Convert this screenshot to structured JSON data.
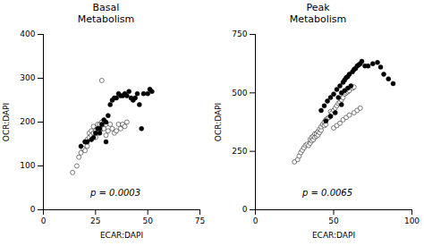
{
  "chart_data": [
    {
      "type": "scatter",
      "title": "Basal\nMetabolism",
      "xlabel": "ECAR:DAPI",
      "ylabel": "OCR:DAPI",
      "xlim": [
        0,
        75
      ],
      "ylim": [
        0,
        400
      ],
      "xticks": [
        0,
        25,
        50,
        75
      ],
      "yticks": [
        0,
        100,
        200,
        300,
        400
      ],
      "annotation": "p = 0.0003",
      "series": [
        {
          "color": "white",
          "marker": "o",
          "x": [
            14,
            16,
            17,
            18,
            19,
            20,
            20,
            21,
            21,
            22,
            22,
            23,
            23,
            24,
            24,
            25,
            25,
            26,
            26,
            27,
            27,
            28,
            28,
            29,
            30,
            30,
            31,
            32,
            33,
            34,
            35,
            36,
            37,
            38,
            39,
            40,
            28
          ],
          "values": [
            85,
            100,
            120,
            130,
            140,
            135,
            155,
            145,
            160,
            165,
            175,
            170,
            180,
            175,
            190,
            165,
            180,
            175,
            195,
            180,
            195,
            185,
            200,
            185,
            170,
            195,
            180,
            195,
            185,
            175,
            180,
            195,
            185,
            195,
            190,
            200,
            295
          ]
        },
        {
          "color": "black",
          "marker": "o",
          "x": [
            18,
            20,
            21,
            23,
            24,
            25,
            26,
            27,
            28,
            29,
            30,
            31,
            32,
            33,
            34,
            35,
            36,
            37,
            38,
            39,
            40,
            41,
            42,
            43,
            44,
            45,
            46,
            47,
            48,
            50,
            51,
            52,
            27,
            30
          ],
          "values": [
            145,
            155,
            155,
            160,
            165,
            175,
            185,
            185,
            195,
            205,
            200,
            215,
            240,
            250,
            255,
            255,
            265,
            260,
            260,
            265,
            260,
            270,
            255,
            250,
            255,
            265,
            240,
            185,
            265,
            265,
            275,
            270,
            175,
            155
          ]
        }
      ]
    },
    {
      "type": "scatter",
      "title": "Peak\nMetabolism",
      "xlabel": "ECAR:DAPI",
      "ylabel": "OCR:DAPI",
      "xlim": [
        0,
        100
      ],
      "ylim": [
        0,
        750
      ],
      "xticks": [
        0,
        50,
        100
      ],
      "yticks": [
        0,
        250,
        500,
        750
      ],
      "annotation": "p = 0.0065",
      "series": [
        {
          "color": "white",
          "marker": "o",
          "x": [
            25,
            27,
            28,
            29,
            30,
            31,
            32,
            33,
            34,
            35,
            35,
            36,
            36,
            37,
            37,
            38,
            38,
            39,
            39,
            40,
            40,
            41,
            41,
            42,
            42,
            43,
            44,
            44,
            45,
            45,
            46,
            47,
            48,
            48,
            49,
            50,
            51,
            52,
            53,
            54,
            55,
            56,
            57,
            58,
            59,
            60,
            62,
            63,
            50,
            52,
            54,
            56,
            58,
            60,
            63,
            65,
            67
          ],
          "values": [
            205,
            215,
            230,
            245,
            255,
            265,
            275,
            280,
            275,
            285,
            300,
            295,
            310,
            300,
            315,
            310,
            325,
            315,
            325,
            320,
            335,
            330,
            345,
            340,
            355,
            365,
            375,
            360,
            385,
            365,
            390,
            395,
            400,
            420,
            415,
            425,
            435,
            445,
            455,
            460,
            470,
            480,
            495,
            500,
            505,
            510,
            520,
            525,
            350,
            360,
            370,
            385,
            395,
            405,
            415,
            425,
            435
          ]
        },
        {
          "color": "black",
          "marker": "o",
          "x": [
            42,
            44,
            46,
            48,
            50,
            52,
            54,
            56,
            57,
            58,
            59,
            60,
            62,
            63,
            64,
            65,
            66,
            67,
            68,
            70,
            72,
            75,
            78,
            80,
            82,
            85,
            88,
            53,
            55,
            57,
            59,
            61,
            45,
            48,
            51,
            55
          ],
          "values": [
            425,
            445,
            465,
            480,
            495,
            515,
            530,
            545,
            555,
            565,
            570,
            580,
            590,
            600,
            605,
            615,
            620,
            625,
            635,
            615,
            615,
            625,
            630,
            610,
            580,
            560,
            540,
            480,
            500,
            510,
            520,
            530,
            380,
            400,
            415,
            450
          ]
        }
      ]
    }
  ]
}
